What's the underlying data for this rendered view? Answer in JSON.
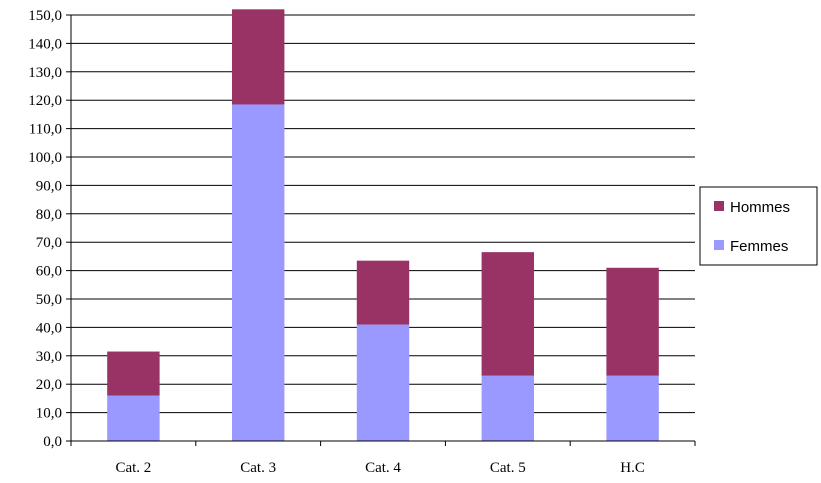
{
  "chart_data": {
    "type": "bar",
    "stacked": true,
    "categories": [
      "Cat. 2",
      "Cat. 3",
      "Cat. 4",
      "Cat. 5",
      "H.C"
    ],
    "series": [
      {
        "name": "Femmes",
        "color": "#9999ff",
        "values": [
          16.0,
          118.5,
          41.0,
          23.0,
          23.0
        ]
      },
      {
        "name": "Hommes",
        "color": "#993366",
        "values": [
          15.5,
          33.5,
          22.5,
          43.5,
          38.0
        ]
      }
    ],
    "ylim": [
      0,
      150
    ],
    "ytick_step": 10,
    "ytick_labels": [
      "0,0",
      "10,0",
      "20,0",
      "30,0",
      "40,0",
      "50,0",
      "60,0",
      "70,0",
      "80,0",
      "90,0",
      "100,0",
      "110,0",
      "120,0",
      "130,0",
      "140,0",
      "150,0"
    ],
    "grid": true,
    "legend": {
      "position": "right",
      "order": [
        "Hommes",
        "Femmes"
      ]
    },
    "title": "",
    "xlabel": "",
    "ylabel": ""
  }
}
